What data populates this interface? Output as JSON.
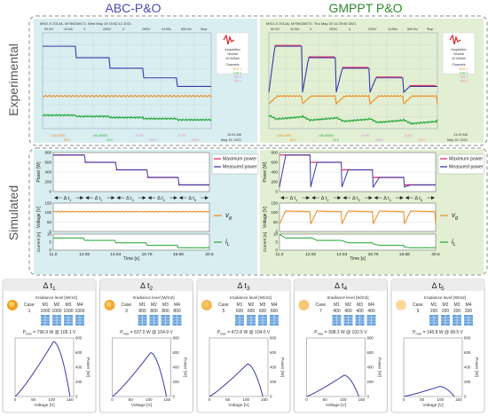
{
  "headers": {
    "left": "ABC-P&O",
    "right": "GMPPT P&O"
  },
  "row_labels": {
    "experimental": "Experimental",
    "simulated": "Simulated"
  },
  "scope": {
    "left_header": "MSO-X 2014A, MY56030071: Wed May 19 10:52:12 2021",
    "right_header": "MSO-X 2014A, MY56030071: Thu May 20 11:29:06 2021",
    "top_scale": [
      "50.0V/",
      "10.0A/",
      "3",
      "200V/",
      "4",
      "200V/",
      "14.50s",
      "800.0s/",
      "Stop"
    ],
    "side": {
      "acquisition": "Acquisition",
      "mode": "Normal",
      "rate": "10.0kSa/s",
      "channels": "Channels",
      "ch_values": [
        "50.0:1",
        "1.00:1",
        "100:1",
        "100:1"
      ]
    },
    "left_bottom": {
      "time": "10:51 AM",
      "date": "May 19, 2021"
    },
    "right_bottom": {
      "time": "11:29 AM",
      "date": "May 20, 2021"
    },
    "bottom_fields": [
      "=100.000V",
      "=40.0000V",
      "=0.0V",
      "=0.0V"
    ],
    "bottom_fields2": [
      "50.0",
      "10.0",
      "100.0",
      "100.0"
    ]
  },
  "sim": {
    "power_axis": "Power [W]",
    "voltage_axis": "Voltage [V]",
    "current_axis": "Current [A]",
    "time_axis": "Time [s]",
    "power_ticks": [
      "800",
      "600",
      "400",
      "200",
      "0"
    ],
    "voltage_ticks": [
      "150",
      "100",
      "50",
      "0"
    ],
    "current_ticks": [
      "10",
      "5",
      "0"
    ],
    "time_ticks": [
      "11.0",
      "12.92",
      "14.84",
      "16.76",
      "18.68",
      "20.6"
    ],
    "legend": {
      "max": "Maximum power",
      "meas": "Measured power",
      "vg": "v",
      "vg_sub": "g",
      "il": "i",
      "il_sub": "L"
    },
    "intervals": [
      "Δ t",
      "Δ t",
      "Δ t",
      "Δ t",
      "Δ t"
    ],
    "interval_subs": [
      "1",
      "2",
      "3",
      "4",
      "5"
    ]
  },
  "cases": [
    {
      "title": "Δ t",
      "sub": "1",
      "case_no": "1",
      "irr": [
        "1000",
        "1000",
        "1000",
        "1000"
      ],
      "pmax": "P",
      "pmax_sub": "max",
      "pmax_text": " = 796.9 W @ 105.1 V",
      "mpp_v": 105.1,
      "pmax_w": 796.9,
      "voc": 150
    },
    {
      "title": "Δ t",
      "sub": "2",
      "case_no": "3",
      "irr": [
        "800",
        "800",
        "800",
        "800"
      ],
      "pmax": "P",
      "pmax_sub": "max",
      "pmax_text": " = 637.0 W @ 104.9 V",
      "mpp_v": 104.9,
      "pmax_w": 637.0,
      "voc": 148
    },
    {
      "title": "Δ t",
      "sub": "3",
      "case_no": "5",
      "irr": [
        "600",
        "600",
        "600",
        "600"
      ],
      "pmax": "P",
      "pmax_sub": "max",
      "pmax_text": " = 472.8 W @ 104.0 V",
      "mpp_v": 104.0,
      "pmax_w": 472.8,
      "voc": 146
    },
    {
      "title": "Δ t",
      "sub": "4",
      "case_no": "7",
      "irr": [
        "400",
        "400",
        "400",
        "400"
      ],
      "pmax": "P",
      "pmax_sub": "max",
      "pmax_text": " = 308.3 W @ 102.5 V",
      "mpp_v": 102.5,
      "pmax_w": 308.3,
      "voc": 143
    },
    {
      "title": "Δ t",
      "sub": "5",
      "case_no": "9",
      "irr": [
        "200",
        "200",
        "200",
        "200"
      ],
      "pmax": "P",
      "pmax_sub": "max",
      "pmax_text": " = 145.8 W @ 98.5 V",
      "mpp_v": 98.5,
      "pmax_w": 145.8,
      "voc": 138
    }
  ],
  "case_labels": {
    "irradiance": "Irradiance level [W/m2]",
    "case": "Case",
    "modules": [
      "M1",
      "M2",
      "M3",
      "M4"
    ],
    "xlabel": "Voltage [V]",
    "ylabel": "Power [W]",
    "xticks": [
      "0",
      "50",
      "100",
      "150"
    ],
    "yticks": [
      "800",
      "600",
      "400",
      "200",
      "0"
    ]
  },
  "colors": {
    "left_bg": "#d9eef0",
    "right_bg": "#e2efd3",
    "power": "#3a3aa8",
    "max": "#e0306a",
    "voltage": "#f08a1c",
    "current": "#27a83a",
    "header_left": "#4a4ab8",
    "header_right": "#2f8a2f",
    "pv": "#4a8fd8"
  }
}
